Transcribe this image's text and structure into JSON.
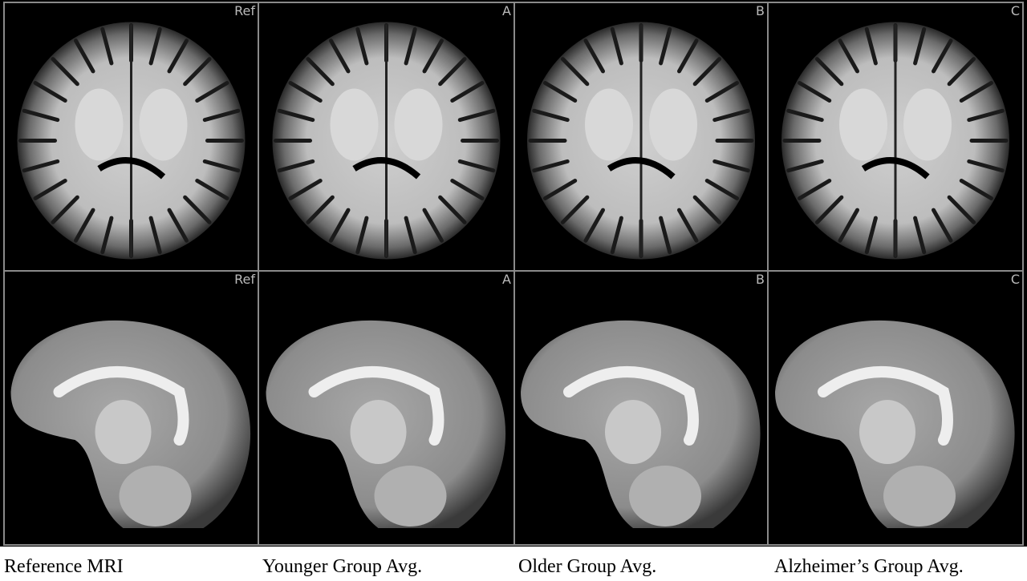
{
  "panels": [
    [
      "Ref",
      "A",
      "B",
      "C"
    ],
    [
      "Ref",
      "A",
      "B",
      "C"
    ]
  ],
  "captions": [
    "Reference MRI",
    "Younger Group Avg.",
    "Older Group Avg.",
    "Alzheimer’s Group Avg."
  ]
}
